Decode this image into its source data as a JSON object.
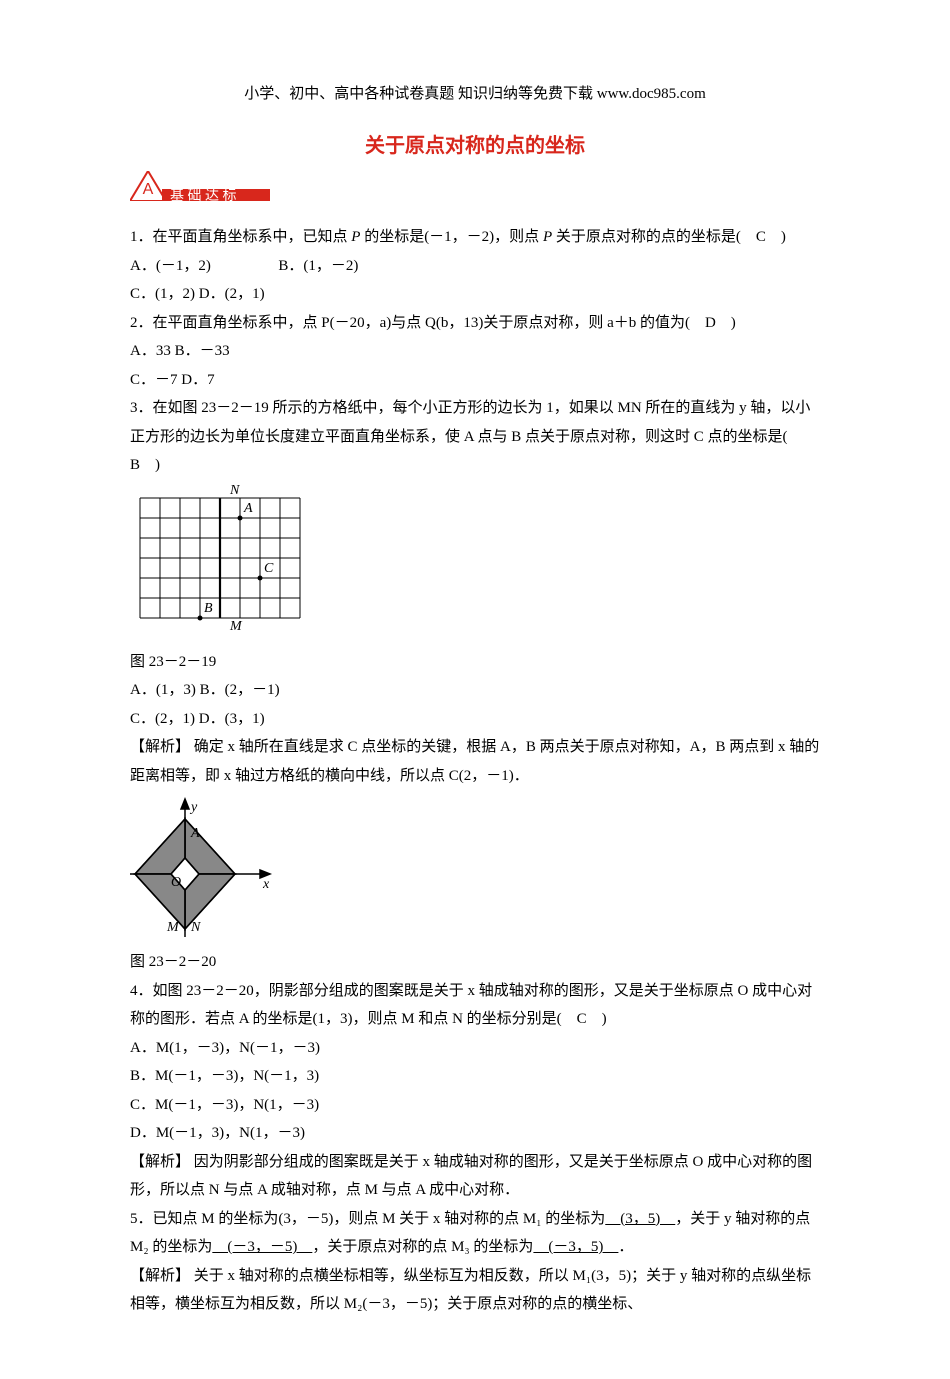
{
  "header_note": "小学、初中、高中各种试卷真题 知识归纳等免费下载  www.doc985.com",
  "title": "关于原点对称的点的坐标",
  "section_badge": {
    "letter": "A",
    "text": "基 础 达 标",
    "fill": "#d8271c"
  },
  "q1": {
    "stem_pre": "1．在平面直角坐标系中，已知点 ",
    "p": "P",
    "stem_mid": " 的坐标是(－1，－2)，则点 ",
    "stem_post": " 关于原点对称的点的坐标是(　C　)",
    "optA": "A．(－1，2)",
    "optB": "B．(1，－2)",
    "optC": "C．(1，2) D．(2，1)"
  },
  "q2": {
    "stem": "2．在平面直角坐标系中，点 P(－20，a)与点 Q(b，13)关于原点对称，则 a＋b 的值为(　D　)",
    "optA": "A．33  B．－33",
    "optB": "C．－7  D．7"
  },
  "q3": {
    "stem1": "3．在如图 23－2－19 所示的方格纸中，每个小正方形的边长为 1，如果以 MN 所在的直线为 y 轴，以小正方形的边长为单位长度建立平面直角坐标系，使 A 点与 B 点关于原点对称，则这时 C 点的坐标是(　B　)",
    "caption": "图 23－2－19",
    "optA": "A．(1，3)  B．(2，－1)",
    "optB": "C．(2，1)  D．(3，1)",
    "analysis_label": "【解析】",
    "analysis": " 确定 x 轴所在直线是求 C 点坐标的关键，根据 A，B 两点关于原点对称知，A，B 两点到 x 轴的距离相等，即 x 轴过方格纸的横向中线，所以点 C(2，－1)．",
    "grid": {
      "cols": 8,
      "rows": 6,
      "cell": 20,
      "labels": {
        "N": {
          "col": 4.5,
          "row": -0.2
        },
        "M": {
          "col": 4.5,
          "row": 6.6
        },
        "A": {
          "col": 5.2,
          "row": 0.7
        },
        "C": {
          "col": 6.2,
          "row": 3.7
        },
        "B": {
          "col": 3.2,
          "row": 5.7
        }
      },
      "thick_y_col": 4,
      "points": [
        [
          5,
          1
        ],
        [
          6,
          4
        ],
        [
          3,
          6
        ]
      ],
      "short_rows": [
        1,
        4
      ]
    }
  },
  "fig2": {
    "caption": "图 23－2－20",
    "axis_color": "#000",
    "fill": "#888",
    "labels": {
      "y": "y",
      "x": "x",
      "A": "A",
      "O": "O",
      "M": "M",
      "N": "N"
    }
  },
  "q4": {
    "stem": "4．如图 23－2－20，阴影部分组成的图案既是关于 x 轴成轴对称的图形，又是关于坐标原点 O 成中心对称的图形．若点 A 的坐标是(1，3)，则点 M 和点 N 的坐标分别是(　C　)",
    "optA": "A．M(1，－3)，N(－1，－3)",
    "optB": "B．M(－1，－3)，N(－1，3)",
    "optC": "C．M(－1，－3)，N(1，－3)",
    "optD": "D．M(－1，3)，N(1，－3)",
    "analysis_label": "【解析】",
    "analysis": " 因为阴影部分组成的图案既是关于 x 轴成轴对称的图形，又是关于坐标原点 O 成中心对称的图形，所以点 N 与点 A 成轴对称，点 M 与点 A 成中心对称．"
  },
  "q5": {
    "pre": "5．已知点 M 的坐标为(3，－5)，则点 M 关于 x 轴对称的点 M₁ 的坐标为",
    "blank1": "　(3，5)　",
    "mid1": "，关于 y 轴对称的点 M₂ 的坐标为",
    "blank2": "　(－3，－5)　",
    "mid2": "，关于原点对称的点 M₃ 的坐标为",
    "blank3": "　(－3，5)　",
    "tail": "．",
    "analysis_label": "【解析】",
    "analysis": " 关于 x 轴对称的点横坐标相等，纵坐标互为相反数，所以 M₁(3，5)；关于 y 轴对称的点纵坐标相等，横坐标互为相反数，所以 M₂(－3，－5)；关于原点对称的点的横坐标、"
  }
}
